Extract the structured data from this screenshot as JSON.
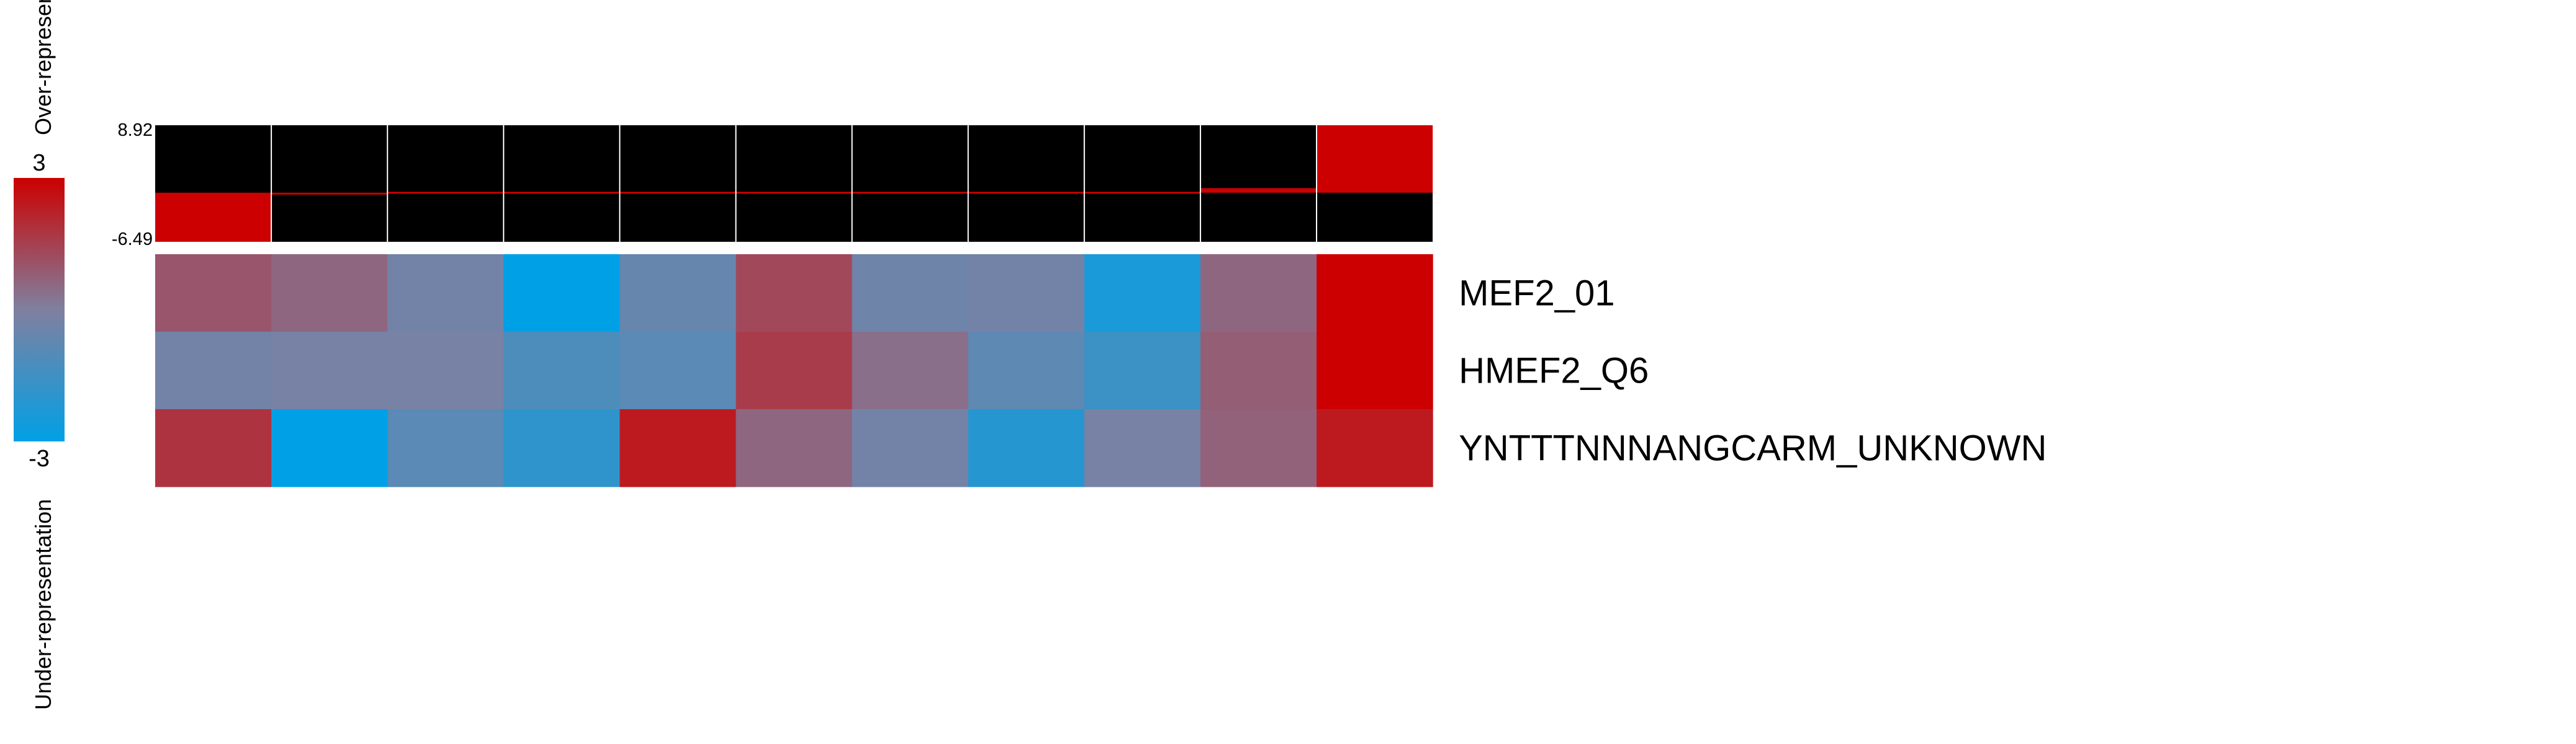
{
  "chart_data": {
    "type": "heatmap",
    "legend": {
      "max_label": "3",
      "min_label": "-3",
      "over_label": "Over-representation",
      "under_label": "Under-representation",
      "range": [
        -3,
        3
      ],
      "colors": {
        "low": "#00a0e6",
        "mid": "#8080a0",
        "high": "#cc0000"
      }
    },
    "profile": {
      "ymax_label": "8.92",
      "ymin_label": "-6.49",
      "ylim": [
        -6.49,
        8.92
      ],
      "values": [
        -6.49,
        -0.25,
        -0.15,
        -0.1,
        -0.05,
        -0.03,
        0.0,
        0.05,
        0.2,
        0.6,
        8.92
      ],
      "colors": {
        "background": "#000000",
        "fill": "#cc0000",
        "grid": "#ffffff"
      }
    },
    "rows": [
      {
        "label": "MEF2_01",
        "values": [
          1.0,
          0.6,
          -0.3,
          -3.0,
          -0.6,
          1.3,
          -0.4,
          -0.3,
          -2.4,
          0.6,
          3.0
        ]
      },
      {
        "label": "HMEF2_Q6",
        "values": [
          -0.3,
          -0.2,
          -0.2,
          -1.2,
          -0.9,
          1.6,
          0.4,
          -0.8,
          -1.6,
          0.8,
          3.0
        ]
      },
      {
        "label": "YNTTTNNNANGCARM_UNKNOWN",
        "values": [
          1.8,
          -3.0,
          -0.9,
          -1.9,
          2.4,
          0.6,
          -0.3,
          -2.1,
          -0.2,
          0.7,
          2.4
        ]
      }
    ]
  }
}
